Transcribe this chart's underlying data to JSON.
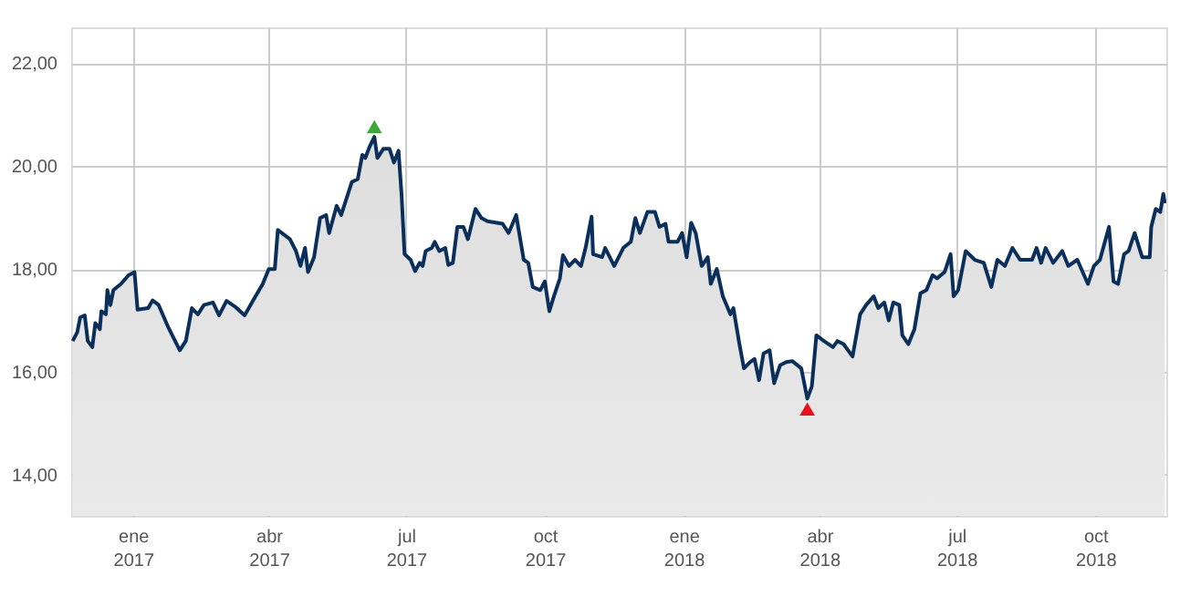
{
  "chart_data": {
    "type": "area",
    "xlim": [
      "2016-11-21",
      "2018-11-17"
    ],
    "xticks": [
      {
        "value": "2017-01-01",
        "label": "ene 2017"
      },
      {
        "value": "2017-04-01",
        "label": "abr 2017"
      },
      {
        "value": "2017-07-01",
        "label": "jul 2017"
      },
      {
        "value": "2017-10-01",
        "label": "oct 2017"
      },
      {
        "value": "2018-01-01",
        "label": "ene 2018"
      },
      {
        "value": "2018-04-01",
        "label": "abr 2018"
      },
      {
        "value": "2018-07-01",
        "label": "jul 2018"
      },
      {
        "value": "2018-10-01",
        "label": "oct 2018"
      }
    ],
    "ylim": [
      13.2,
      22.7
    ],
    "yticks": [
      {
        "value": 14,
        "label": "14,00"
      },
      {
        "value": 16,
        "label": "16,00"
      },
      {
        "value": 18,
        "label": "18,00"
      },
      {
        "value": 20,
        "label": "20,00"
      },
      {
        "value": 22,
        "label": "22,00"
      }
    ],
    "grid": true,
    "series": [
      {
        "color": "#0b2f5b",
        "x": [
          "2016-11-22",
          "2016-11-25",
          "2016-11-27",
          "2016-11-30",
          "2016-12-02",
          "2016-12-05",
          "2016-12-07",
          "2016-12-10",
          "2016-12-11",
          "2016-12-14",
          "2016-12-15",
          "2016-12-17",
          "2016-12-19",
          "2016-12-24",
          "2016-12-29",
          "2017-01-02",
          "2017-01-04",
          "2017-01-11",
          "2017-01-14",
          "2017-01-18",
          "2017-01-24",
          "2017-02-01",
          "2017-02-05",
          "2017-02-09",
          "2017-02-13",
          "2017-02-17",
          "2017-02-23",
          "2017-02-27",
          "2017-03-04",
          "2017-03-10",
          "2017-03-16",
          "2017-03-22",
          "2017-03-28",
          "2017-04-01",
          "2017-04-05",
          "2017-04-07",
          "2017-04-15",
          "2017-04-19",
          "2017-04-22",
          "2017-04-25",
          "2017-04-27",
          "2017-05-01",
          "2017-05-05",
          "2017-05-09",
          "2017-05-11",
          "2017-05-16",
          "2017-05-19",
          "2017-05-26",
          "2017-05-30",
          "2017-06-02",
          "2017-06-04",
          "2017-06-07",
          "2017-06-10",
          "2017-06-12",
          "2017-06-16",
          "2017-06-20",
          "2017-06-23",
          "2017-06-26",
          "2017-06-28",
          "2017-06-30",
          "2017-07-04",
          "2017-07-07",
          "2017-07-10",
          "2017-07-12",
          "2017-07-14",
          "2017-07-18",
          "2017-07-20",
          "2017-07-23",
          "2017-07-27",
          "2017-07-29",
          "2017-08-01",
          "2017-08-04",
          "2017-08-08",
          "2017-08-11",
          "2017-08-16",
          "2017-08-20",
          "2017-08-24",
          "2017-09-03",
          "2017-09-07",
          "2017-09-12",
          "2017-09-17",
          "2017-09-20",
          "2017-09-23",
          "2017-09-28",
          "2017-10-01",
          "2017-10-04",
          "2017-10-07",
          "2017-10-11",
          "2017-10-13",
          "2017-10-17",
          "2017-10-21",
          "2017-10-25",
          "2017-10-28",
          "2017-11-01",
          "2017-11-02",
          "2017-11-08",
          "2017-11-10",
          "2017-11-16",
          "2017-11-22",
          "2017-11-27",
          "2017-11-30",
          "2017-12-03",
          "2017-12-08",
          "2017-12-13",
          "2017-12-16",
          "2017-12-20",
          "2017-12-22",
          "2017-12-28",
          "2017-12-31",
          "2018-01-03",
          "2018-01-06",
          "2018-01-09",
          "2018-01-13",
          "2018-01-17",
          "2018-01-19",
          "2018-01-23",
          "2018-01-27",
          "2018-02-01",
          "2018-02-03",
          "2018-02-07",
          "2018-02-10",
          "2018-02-14",
          "2018-02-17",
          "2018-02-20",
          "2018-02-23",
          "2018-02-27",
          "2018-03-02",
          "2018-03-06",
          "2018-03-10",
          "2018-03-14",
          "2018-03-20",
          "2018-03-24",
          "2018-03-27",
          "2018-03-30",
          "2018-04-04",
          "2018-04-10",
          "2018-04-13",
          "2018-04-17",
          "2018-04-23",
          "2018-04-28",
          "2018-05-02",
          "2018-05-07",
          "2018-05-10",
          "2018-05-14",
          "2018-05-17",
          "2018-05-20",
          "2018-05-24",
          "2018-05-26",
          "2018-05-30",
          "2018-06-03",
          "2018-06-07",
          "2018-06-11",
          "2018-06-15",
          "2018-06-18",
          "2018-06-23",
          "2018-06-27",
          "2018-06-29",
          "2018-07-02",
          "2018-07-07",
          "2018-07-13",
          "2018-07-19",
          "2018-07-24",
          "2018-07-28",
          "2018-08-02",
          "2018-08-07",
          "2018-08-12",
          "2018-08-20",
          "2018-08-23",
          "2018-08-26",
          "2018-08-29",
          "2018-09-03",
          "2018-09-09",
          "2018-09-13",
          "2018-09-19",
          "2018-09-26",
          "2018-09-30",
          "2018-10-04",
          "2018-10-10",
          "2018-10-13",
          "2018-10-16",
          "2018-10-20",
          "2018-10-23",
          "2018-10-27",
          "2018-11-01",
          "2018-11-06",
          "2018-11-07",
          "2018-11-10",
          "2018-11-13",
          "2018-11-15",
          "2018-11-16"
        ],
        "values": [
          16.6,
          16.77,
          17.06,
          17.1,
          16.6,
          16.48,
          16.95,
          16.83,
          17.18,
          17.12,
          17.59,
          17.3,
          17.59,
          17.71,
          17.88,
          17.94,
          17.21,
          17.24,
          17.39,
          17.3,
          16.89,
          16.42,
          16.6,
          17.24,
          17.12,
          17.3,
          17.35,
          17.1,
          17.38,
          17.26,
          17.1,
          17.41,
          17.71,
          18.0,
          18.0,
          18.76,
          18.58,
          18.35,
          18.06,
          18.41,
          17.94,
          18.23,
          18.99,
          19.05,
          18.7,
          19.23,
          19.05,
          19.69,
          19.75,
          20.22,
          20.16,
          20.39,
          20.57,
          20.16,
          20.34,
          20.34,
          20.07,
          20.3,
          19.46,
          18.29,
          18.18,
          17.96,
          18.12,
          18.06,
          18.35,
          18.41,
          18.53,
          18.35,
          18.41,
          18.08,
          18.12,
          18.82,
          18.82,
          18.58,
          19.17,
          18.99,
          18.93,
          18.88,
          18.7,
          19.05,
          18.18,
          18.12,
          17.65,
          17.59,
          17.76,
          17.18,
          17.47,
          17.82,
          18.27,
          18.06,
          18.18,
          18.06,
          18.41,
          19.02,
          18.29,
          18.23,
          18.41,
          18.06,
          18.41,
          18.53,
          18.99,
          18.7,
          19.11,
          19.11,
          18.82,
          18.88,
          18.53,
          18.53,
          18.7,
          18.23,
          18.9,
          18.7,
          18.06,
          18.23,
          17.71,
          18.0,
          17.47,
          17.12,
          17.24,
          16.54,
          16.07,
          16.19,
          16.25,
          15.84,
          16.36,
          16.42,
          15.78,
          16.13,
          16.19,
          16.21,
          16.07,
          15.48,
          15.72,
          16.71,
          16.6,
          16.48,
          16.6,
          16.54,
          16.3,
          17.12,
          17.3,
          17.47,
          17.24,
          17.35,
          17.0,
          17.35,
          17.3,
          16.71,
          16.54,
          16.83,
          17.53,
          17.59,
          17.88,
          17.82,
          17.94,
          18.29,
          17.47,
          17.59,
          18.35,
          18.18,
          18.12,
          17.65,
          18.18,
          18.06,
          18.41,
          18.18,
          18.18,
          18.41,
          18.12,
          18.41,
          18.12,
          18.35,
          18.06,
          18.18,
          17.71,
          18.06,
          18.18,
          18.82,
          17.76,
          17.71,
          18.29,
          18.35,
          18.7,
          18.23,
          18.23,
          18.82,
          19.17,
          19.11,
          19.46,
          19.28
        ]
      },
      {
        "color": "#3aa935",
        "type": "scatter",
        "marker": "triangle",
        "x": [
          "2017-06-10"
        ],
        "values": [
          20.77
        ]
      },
      {
        "color": "#e8111a",
        "type": "scatter",
        "marker": "triangle",
        "x": [
          "2018-03-24"
        ],
        "values": [
          15.28
        ]
      }
    ]
  }
}
